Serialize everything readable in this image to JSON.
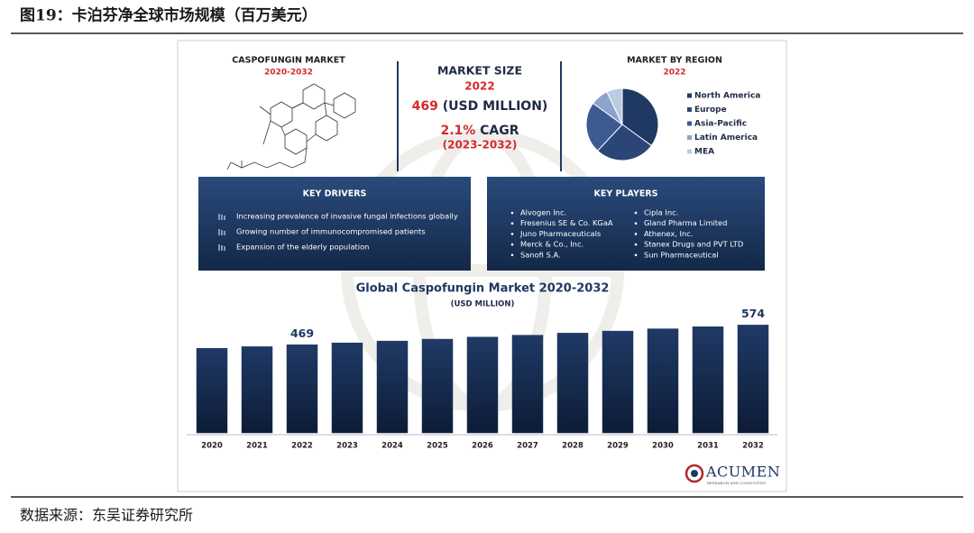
{
  "header": {
    "title": "图19：卡泊芬净全球市场规模（百万美元）"
  },
  "source": "数据来源：东吴证券研究所",
  "infographic": {
    "market": {
      "title": "CASPOFUNGIN MARKET",
      "period": "2020-2032"
    },
    "market_size": {
      "title": "MARKET SIZE",
      "year": "2022",
      "value": "469",
      "unit": "(USD MILLION)",
      "cagr": "2.1%",
      "cagr_label": "CAGR",
      "cagr_period": "(2023-2032)"
    },
    "key_drivers": {
      "title": "KEY DRIVERS",
      "items": [
        "Increasing prevalence of invasive fungal infections globally",
        "Growing number of immunocompromised patients",
        "Expansion of the elderly population"
      ]
    },
    "key_players": {
      "title": "KEY PLAYERS",
      "items": [
        "Alvogen Inc.",
        "Fresenius SE & Co. KGaA",
        "Juno Pharmaceuticals",
        "Merck & Co., Inc.",
        "Sanofi S.A.",
        "Cipla Inc.",
        "Gland Pharma Limited",
        "Athenex, Inc.",
        "Stanex Drugs and PVT LTD",
        "Sun Pharmaceutical"
      ]
    },
    "logo": {
      "name": "ACUMEN",
      "tagline": "RESEARCH AND CONSULTING"
    }
  },
  "chart_data": [
    {
      "type": "bar",
      "title": "Global Caspofungin Market 2020-2032",
      "subtitle": "(USD MILLION)",
      "categories": [
        "2020",
        "2021",
        "2022",
        "2023",
        "2024",
        "2025",
        "2026",
        "2027",
        "2028",
        "2029",
        "2030",
        "2031",
        "2032"
      ],
      "values": [
        450,
        459,
        469,
        479,
        489,
        499,
        510,
        520,
        531,
        542,
        554,
        565,
        574
      ],
      "value_labels": [
        null,
        null,
        "469",
        null,
        null,
        null,
        null,
        null,
        null,
        null,
        null,
        null,
        "574"
      ],
      "color": "#1c3560",
      "ylim": [
        0,
        600
      ]
    },
    {
      "type": "pie",
      "title": "MARKET BY REGION",
      "subtitle": "2022",
      "categories": [
        "North America",
        "Europe",
        "Asia-Pacific",
        "Latin America",
        "MEA"
      ],
      "values": [
        35,
        27,
        23,
        8,
        7
      ],
      "colors": [
        "#1f3864",
        "#2b4676",
        "#3d5b92",
        "#8ea3c9",
        "#bccae2"
      ]
    }
  ]
}
